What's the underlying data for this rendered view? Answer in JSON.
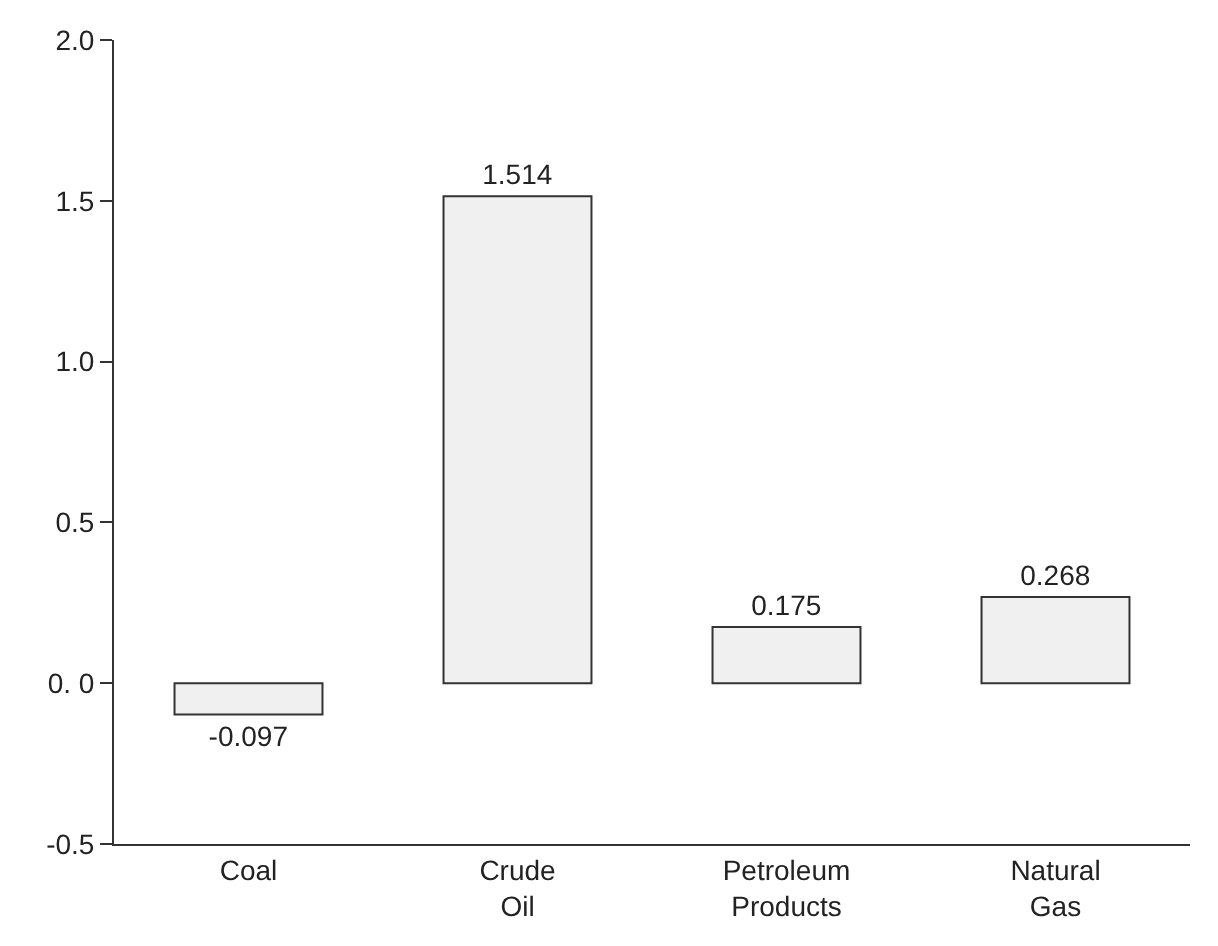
{
  "chart_data": {
    "type": "bar",
    "categories": [
      "Coal",
      "Crude\nOil",
      "Petroleum\nProducts",
      "Natural\nGas"
    ],
    "values": [
      -0.097,
      1.514,
      0.175,
      0.268
    ],
    "color": "#f0f0f0",
    "data_labels": true,
    "ylim": [
      -0.5,
      2.0
    ],
    "yticks": [
      -0.5,
      {
        "value": 0,
        "label": "0. 0"
      },
      0.5,
      {
        "value": 1,
        "label": "1.0"
      },
      1.5,
      {
        "value": 2,
        "label": "2.0"
      }
    ]
  }
}
